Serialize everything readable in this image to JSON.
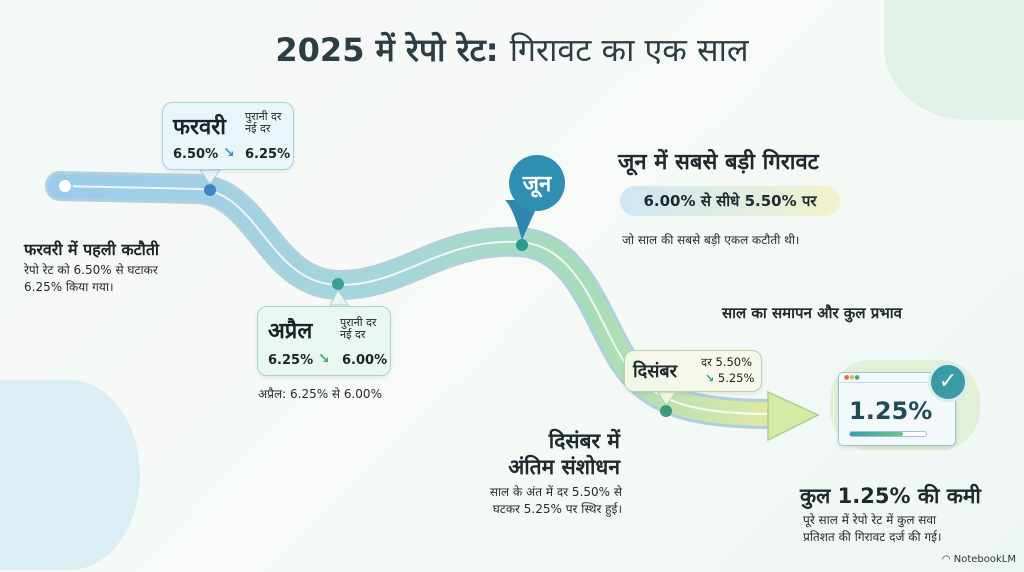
{
  "title": {
    "bold": "2025 में रेपो रेट:",
    "light": "गिरावट का एक साल"
  },
  "labels": {
    "old_rate": "पुरानी दर",
    "new_rate": "नई दर",
    "rate": "दर"
  },
  "february": {
    "month": "फरवरी",
    "from": "6.50%",
    "to": "6.25%",
    "heading": "फरवरी में पहली कटौती",
    "text1": "रेपो रेट को 6.50% से घटाकर",
    "text2": "6.25% किया गया।"
  },
  "april": {
    "month": "अप्रैल",
    "from": "6.25%",
    "to": "6.00%",
    "caption": "अप्रैल: 6.25% से 6.00%"
  },
  "june": {
    "month": "जून",
    "heading": "जून में सबसे बड़ी गिरावट",
    "pill": "6.00% से सीधे 5.50% पर",
    "text": "जो साल की सबसे बड़ी एकल कटौती थी।"
  },
  "december": {
    "month": "दिसंबर",
    "from": "5.50%",
    "to": "5.25%",
    "heading1": "दिसंबर में",
    "heading2": "अंतिम संशोधन",
    "text1": "साल के अंत में दर 5.50% से",
    "text2": "घटकर 5.25% पर स्थिर हुई।"
  },
  "summary": {
    "section": "साल का समापन और कुल प्रभाव",
    "value": "1.25%",
    "progress": 0.7,
    "heading": "कुल 1.25% की कमी",
    "text1": "पूरे साल में रेपो रेट में कुल सवा",
    "text2": "प्रतिशत की गिरावट दर्ज की गई।"
  },
  "watermark": "NotebookLM",
  "colors": {
    "blue": "#8fc6e6",
    "green": "#9fd8b4",
    "teal": "#2e8a9a",
    "arrow_down": "#3a8fc0"
  },
  "icons": [
    "arrow-down-right-icon",
    "check-circle-icon",
    "browser-window-icon",
    "notebooklm-logo-icon"
  ]
}
